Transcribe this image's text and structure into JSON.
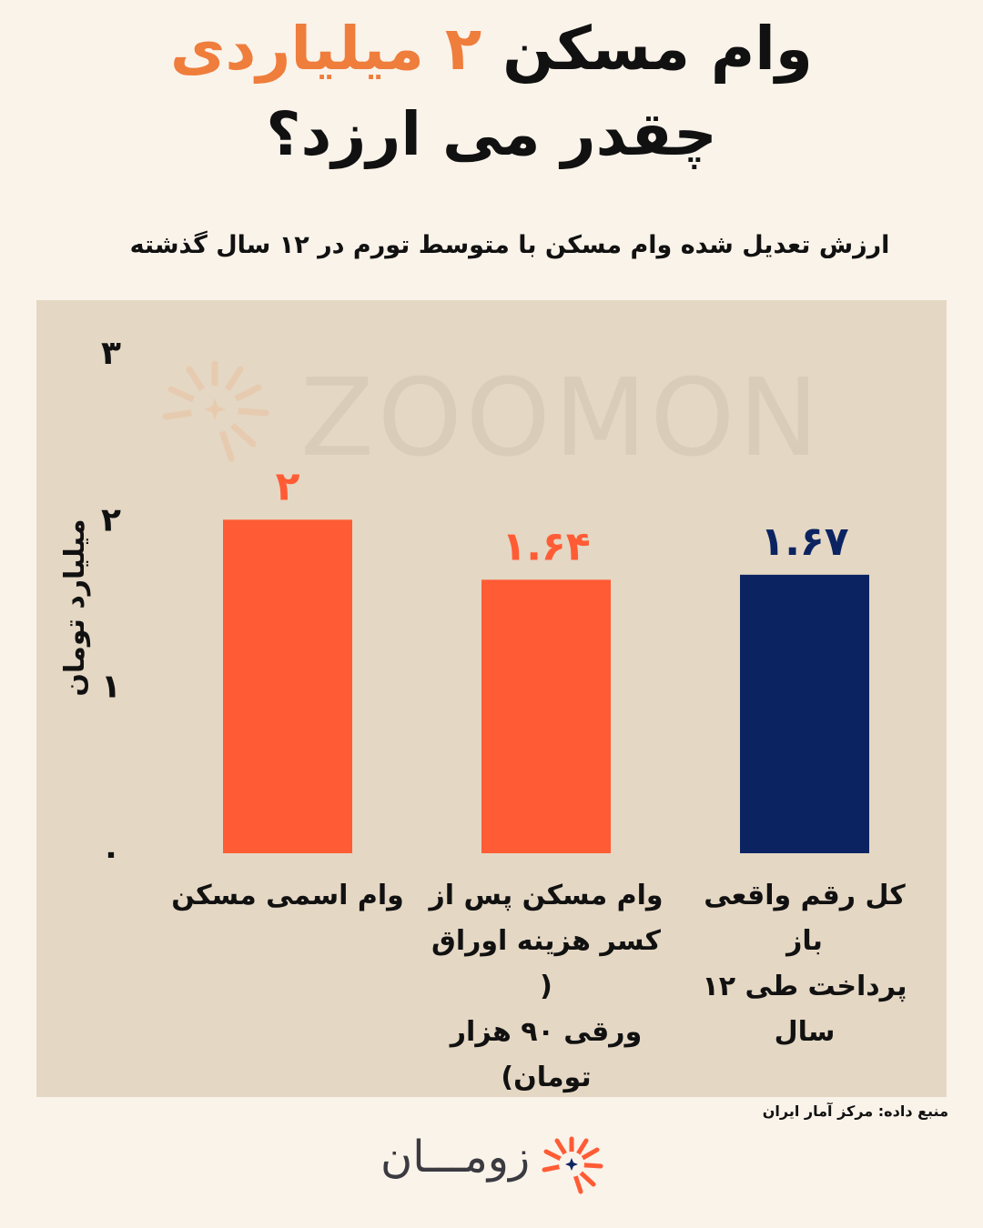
{
  "header": {
    "title_line1_part1": "وام مسکن ",
    "title_line1_accent": "۲ میلیاردی",
    "title_line2": "چقدر می ارزد؟",
    "subtitle": "ارزش تعدیل شده وام مسکن با متوسط تورم در ۱۲ سال گذشته"
  },
  "watermark": {
    "text": "ZOOMON"
  },
  "chart_data": {
    "type": "bar",
    "categories": [
      "وام اسمی مسکن",
      "وام مسکن پس از کسر هزینه اوراق ( ورقی ۹۰ هزار تومان)",
      "کل رقم واقعی باز پرداخت طی ۱۲ سال"
    ],
    "category_lines": [
      [
        "وام اسمی مسکن"
      ],
      [
        "وام مسکن پس از",
        "کسر هزینه اوراق (",
        "ورقی ۹۰ هزار تومان)"
      ],
      [
        "کل رقم واقعی باز",
        "پرداخت  طی ۱۲ سال"
      ]
    ],
    "values": [
      2,
      1.64,
      1.67
    ],
    "data_labels": [
      "۲",
      "۱.۶۴",
      "۱.۶۷"
    ],
    "bar_colors": [
      "#ff5c35",
      "#ff5c35",
      "#0b2461"
    ],
    "label_colors": [
      "#ff5c35",
      "#ff5c35",
      "#0b2461"
    ],
    "ylabel": "میلیارد تومان",
    "ylim": [
      0,
      3
    ],
    "yticks": [
      0,
      1,
      2,
      3
    ],
    "ytick_labels": [
      "۰",
      "۱",
      "۲",
      "۳"
    ],
    "grid": false
  },
  "footer": {
    "source": "منبع داده: مرکز آمار ایران",
    "brand": "زومـــان"
  }
}
